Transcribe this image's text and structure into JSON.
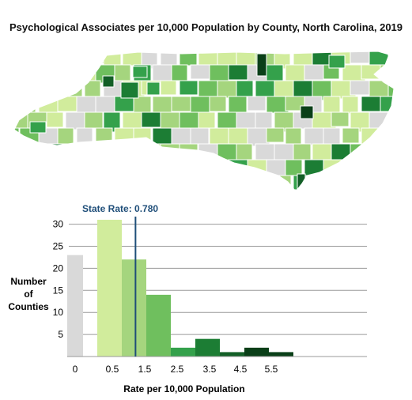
{
  "title": "Psychological Associates per 10,000 Population by County, North Carolina, 2019",
  "colors": {
    "no_data": "#d9d9d9",
    "bin_0_5": "#d1ec9c",
    "bin_1_0": "#a5d57e",
    "bin_1_5": "#6fbf5e",
    "bin_2_0": "#34a14b",
    "bin_2_5": "#1c7d34",
    "bin_3_0": "#135f27",
    "bin_3_5": "#0a3f18",
    "state_line": "#1f4e79",
    "county_border": "#ffffff"
  },
  "chart_data": {
    "type": "bar",
    "title": "",
    "xlabel": "Rate per 10,000 Population",
    "ylabel": "Number of Counties",
    "ylabel_lines": [
      "Number",
      "of",
      "Counties"
    ],
    "xlim": [
      0,
      5.5
    ],
    "ylim": [
      0,
      32
    ],
    "yticks": [
      5,
      10,
      15,
      20,
      25,
      30
    ],
    "xticks": [
      "0",
      "0.5",
      "1.5",
      "2.5",
      "3.5",
      "4.5",
      "5.5"
    ],
    "grid": true,
    "zero_bar": {
      "label": "0",
      "value": 23,
      "color": "#d9d9d9"
    },
    "bins": [
      {
        "start": 0.0,
        "end": 0.5,
        "value": 31,
        "color": "#d1ec9c"
      },
      {
        "start": 0.5,
        "end": 1.0,
        "value": 22,
        "color": "#a5d57e"
      },
      {
        "start": 1.0,
        "end": 1.5,
        "value": 14,
        "color": "#6fbf5e"
      },
      {
        "start": 1.5,
        "end": 2.0,
        "value": 2,
        "color": "#34a14b"
      },
      {
        "start": 2.0,
        "end": 2.5,
        "value": 4,
        "color": "#1c7d34"
      },
      {
        "start": 2.5,
        "end": 3.0,
        "value": 1,
        "color": "#135f27"
      },
      {
        "start": 3.0,
        "end": 3.5,
        "value": 2,
        "color": "#0a3f18"
      },
      {
        "start": 3.5,
        "end": 4.0,
        "value": 1,
        "color": "#0a3f18"
      }
    ],
    "state_rate": {
      "label": "State Rate: 0.780",
      "value": 0.78
    }
  }
}
